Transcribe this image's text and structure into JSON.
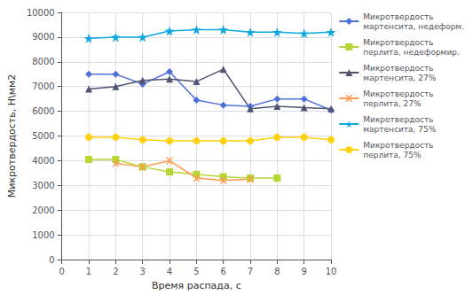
{
  "chart_data": {
    "type": "line",
    "xlabel": "Время распада, с",
    "ylabel": "Микротвердость, Н\\мм2",
    "xlim": [
      0,
      10
    ],
    "xticks": [
      0,
      1,
      2,
      3,
      4,
      5,
      6,
      7,
      8,
      9,
      10
    ],
    "ylim": [
      0,
      10000
    ],
    "yticks": [
      0,
      1000,
      2000,
      3000,
      4000,
      5000,
      6000,
      7000,
      8000,
      9000,
      10000
    ],
    "grid": true,
    "legend": "right",
    "series": [
      {
        "name": "Микротвердость\nмартенсита, недеформ.",
        "marker": "diamond",
        "x": [
          1,
          2,
          3,
          4,
          5,
          6,
          7,
          8,
          9,
          10
        ],
        "values": [
          7500,
          7500,
          7100,
          7600,
          6450,
          6250,
          6200,
          6500,
          6500,
          6050
        ]
      },
      {
        "name": "Микротвердость\nперлита, недеформир.",
        "marker": "square",
        "x": [
          1,
          2,
          3,
          4,
          5,
          6,
          7,
          8
        ],
        "values": [
          4050,
          4050,
          3750,
          3550,
          3450,
          3350,
          3300,
          3300
        ]
      },
      {
        "name": "Микротвердость\nмартенсита, 27%",
        "marker": "triangle",
        "x": [
          1,
          2,
          3,
          4,
          5,
          6,
          7,
          8,
          9,
          10
        ],
        "values": [
          6900,
          7000,
          7250,
          7300,
          7200,
          7700,
          6100,
          6200,
          6150,
          6100
        ]
      },
      {
        "name": "Микротвердость\nперлита, 27%",
        "marker": "x",
        "x": [
          2,
          3,
          4,
          5,
          6,
          7
        ],
        "values": [
          3900,
          3750,
          4000,
          3300,
          3200,
          3250
        ]
      },
      {
        "name": "Микротвердость\nмартенсита, 75%",
        "marker": "star",
        "x": [
          1,
          2,
          3,
          4,
          5,
          6,
          7,
          8,
          9,
          10
        ],
        "values": [
          8950,
          9000,
          9000,
          9250,
          9300,
          9300,
          9200,
          9200,
          9150,
          9200
        ]
      },
      {
        "name": "Микротвердость\nперлита, 75%",
        "marker": "circle",
        "x": [
          1,
          2,
          3,
          4,
          5,
          6,
          7,
          8,
          9,
          10
        ],
        "values": [
          4950,
          4950,
          4850,
          4800,
          4800,
          4800,
          4800,
          4950,
          4950,
          4850
        ]
      }
    ]
  }
}
